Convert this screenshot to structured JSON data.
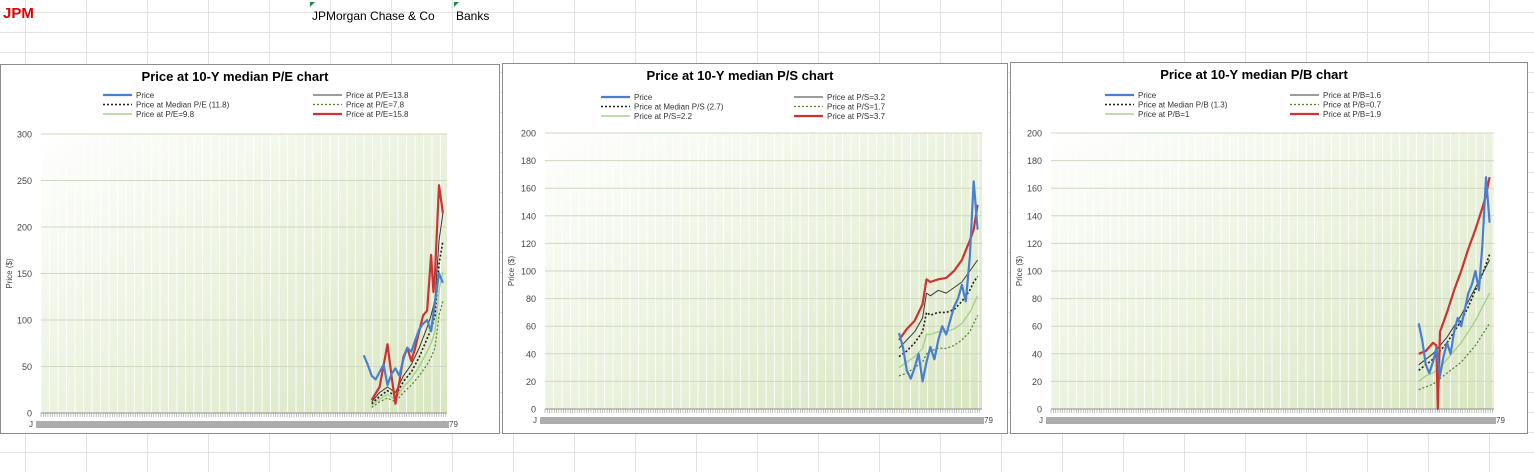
{
  "sheet": {
    "ticker": "JPM",
    "company": "JPMorgan Chase & Co",
    "sector": "Banks"
  },
  "colors": {
    "price": "#4a7fcf",
    "median": "#1f1f1f",
    "high": "#3a3a3a",
    "low": "#4f7f2f",
    "lowest": "#a8d08d",
    "highest": "#cc3333",
    "plot_bg_a": "#ffffff",
    "plot_bg_b": "#d8e6c0"
  },
  "chart_data": [
    {
      "type": "line",
      "title": "Price at 10-Y median P/E chart",
      "ylabel": "Price ($)",
      "ylim": [
        0,
        300
      ],
      "yticks": [
        0,
        50,
        100,
        150,
        200,
        250,
        300
      ],
      "x_tick_start": "J",
      "x_tick_end": "79",
      "grid": true,
      "legend_position": "top",
      "series": [
        {
          "name": "Price",
          "role": "price",
          "x": [
            0.0,
            0.05,
            0.1,
            0.15,
            0.2,
            0.25,
            0.3,
            0.35,
            0.4,
            0.45,
            0.5,
            0.55,
            0.6,
            0.65,
            0.7,
            0.75,
            0.8,
            0.85,
            0.9,
            0.95,
            1.0
          ],
          "values": [
            62,
            52,
            40,
            36,
            44,
            52,
            30,
            42,
            48,
            40,
            58,
            70,
            66,
            78,
            90,
            96,
            100,
            88,
            120,
            150,
            140
          ]
        },
        {
          "name": "Price at P/E=13.8",
          "role": "high",
          "x": [
            0.1,
            0.2,
            0.3,
            0.4,
            0.5,
            0.6,
            0.7,
            0.8,
            0.85,
            0.9,
            0.95,
            1.0
          ],
          "values": [
            12,
            22,
            28,
            22,
            40,
            52,
            70,
            92,
            105,
            122,
            185,
            215
          ]
        },
        {
          "name": "Price at Median P/E (11.8)",
          "role": "median",
          "x": [
            0.1,
            0.2,
            0.3,
            0.4,
            0.5,
            0.6,
            0.7,
            0.8,
            0.85,
            0.9,
            0.95,
            1.0
          ],
          "values": [
            10,
            18,
            24,
            18,
            34,
            44,
            60,
            80,
            90,
            105,
            160,
            185
          ]
        },
        {
          "name": "Price at P/E=7.8",
          "role": "low",
          "x": [
            0.1,
            0.2,
            0.3,
            0.4,
            0.5,
            0.6,
            0.7,
            0.8,
            0.85,
            0.9,
            0.95,
            1.0
          ],
          "values": [
            6,
            12,
            16,
            12,
            22,
            30,
            40,
            52,
            60,
            70,
            105,
            120
          ]
        },
        {
          "name": "Price at P/E=9.8",
          "role": "lowest",
          "x": [
            0.1,
            0.2,
            0.3,
            0.4,
            0.5,
            0.6,
            0.7,
            0.8,
            0.85,
            0.9,
            0.95,
            1.0
          ],
          "values": [
            8,
            15,
            20,
            15,
            28,
            37,
            50,
            66,
            75,
            88,
            132,
            152
          ]
        },
        {
          "name": "Price at P/E=15.8",
          "role": "highest",
          "x": [
            0.1,
            0.2,
            0.3,
            0.35,
            0.4,
            0.45,
            0.5,
            0.55,
            0.6,
            0.65,
            0.7,
            0.75,
            0.8,
            0.85,
            0.88,
            0.9,
            0.95,
            1.0
          ],
          "values": [
            14,
            28,
            74,
            40,
            10,
            34,
            60,
            70,
            56,
            70,
            88,
            105,
            110,
            170,
            130,
            150,
            245,
            215
          ]
        }
      ]
    },
    {
      "type": "line",
      "title": "Price at 10-Y median P/S chart",
      "ylabel": "Price ($)",
      "ylim": [
        0,
        200
      ],
      "yticks": [
        0,
        20,
        40,
        60,
        80,
        100,
        120,
        140,
        160,
        180,
        200
      ],
      "x_tick_start": "J",
      "x_tick_end": "79",
      "grid": true,
      "legend_position": "top",
      "series": [
        {
          "name": "Price",
          "role": "price",
          "x": [
            0.0,
            0.05,
            0.1,
            0.15,
            0.2,
            0.25,
            0.3,
            0.35,
            0.4,
            0.45,
            0.5,
            0.55,
            0.6,
            0.65,
            0.7,
            0.75,
            0.8,
            0.85,
            0.9,
            0.95,
            1.0
          ],
          "values": [
            55,
            45,
            28,
            22,
            30,
            40,
            20,
            34,
            45,
            36,
            50,
            60,
            54,
            64,
            74,
            80,
            90,
            78,
            110,
            165,
            130
          ]
        },
        {
          "name": "Price at P/S=3.2",
          "role": "high",
          "x": [
            0.0,
            0.1,
            0.2,
            0.3,
            0.35,
            0.4,
            0.5,
            0.6,
            0.7,
            0.8,
            0.9,
            0.95,
            1.0
          ],
          "values": [
            44,
            50,
            56,
            66,
            84,
            82,
            86,
            84,
            88,
            92,
            100,
            104,
            108
          ]
        },
        {
          "name": "Price at Median P/S (2.7)",
          "role": "median",
          "x": [
            0.0,
            0.1,
            0.2,
            0.3,
            0.35,
            0.4,
            0.5,
            0.6,
            0.7,
            0.8,
            0.9,
            0.95,
            1.0
          ],
          "values": [
            38,
            42,
            48,
            56,
            70,
            68,
            70,
            70,
            72,
            78,
            86,
            92,
            96
          ]
        },
        {
          "name": "Price at P/S=1.7",
          "role": "low",
          "x": [
            0.0,
            0.1,
            0.2,
            0.3,
            0.35,
            0.4,
            0.5,
            0.6,
            0.7,
            0.8,
            0.9,
            0.95,
            1.0
          ],
          "values": [
            24,
            26,
            30,
            34,
            40,
            42,
            44,
            44,
            46,
            50,
            56,
            62,
            68
          ]
        },
        {
          "name": "Price at P/S=2.2",
          "role": "lowest",
          "x": [
            0.0,
            0.1,
            0.2,
            0.3,
            0.35,
            0.4,
            0.5,
            0.6,
            0.7,
            0.8,
            0.9,
            0.95,
            1.0
          ],
          "values": [
            30,
            34,
            38,
            44,
            54,
            54,
            56,
            56,
            58,
            62,
            70,
            76,
            82
          ]
        },
        {
          "name": "Price at P/S=3.7",
          "role": "highest",
          "x": [
            0.0,
            0.1,
            0.2,
            0.3,
            0.35,
            0.4,
            0.5,
            0.6,
            0.7,
            0.8,
            0.9,
            0.95,
            1.0
          ],
          "values": [
            50,
            58,
            64,
            76,
            94,
            92,
            94,
            95,
            100,
            108,
            122,
            130,
            148
          ]
        }
      ]
    },
    {
      "type": "line",
      "title": "Price at 10-Y median P/B chart",
      "ylabel": "Price ($)",
      "ylim": [
        0,
        200
      ],
      "yticks": [
        0,
        20,
        40,
        60,
        80,
        100,
        120,
        140,
        160,
        180,
        200
      ],
      "x_tick_start": "J",
      "x_tick_end": "79",
      "grid": true,
      "legend_position": "top",
      "series": [
        {
          "name": "Price",
          "role": "price",
          "x": [
            0.0,
            0.05,
            0.1,
            0.15,
            0.2,
            0.25,
            0.3,
            0.35,
            0.4,
            0.45,
            0.5,
            0.55,
            0.6,
            0.65,
            0.7,
            0.75,
            0.8,
            0.85,
            0.9,
            0.95,
            1.0
          ],
          "values": [
            62,
            50,
            32,
            26,
            34,
            44,
            24,
            38,
            48,
            40,
            56,
            66,
            60,
            72,
            84,
            90,
            100,
            86,
            120,
            168,
            135
          ]
        },
        {
          "name": "Price at P/B=1.6",
          "role": "high",
          "x": [
            0.0,
            0.1,
            0.2,
            0.3,
            0.4,
            0.5,
            0.6,
            0.7,
            0.8,
            0.9,
            1.0
          ],
          "values": [
            32,
            36,
            40,
            46,
            52,
            60,
            68,
            78,
            88,
            98,
            108
          ]
        },
        {
          "name": "Price at Median P/B (1.3)",
          "role": "median",
          "x": [
            0.0,
            0.1,
            0.2,
            0.3,
            0.4,
            0.5,
            0.6,
            0.7,
            0.8,
            0.9,
            1.0
          ],
          "values": [
            28,
            32,
            36,
            42,
            48,
            56,
            64,
            74,
            86,
            98,
            112
          ]
        },
        {
          "name": "Price at P/B=0.7",
          "role": "low",
          "x": [
            0.0,
            0.1,
            0.2,
            0.3,
            0.4,
            0.5,
            0.6,
            0.7,
            0.8,
            0.9,
            1.0
          ],
          "values": [
            14,
            16,
            18,
            22,
            26,
            30,
            34,
            40,
            46,
            54,
            62
          ]
        },
        {
          "name": "Price at P/B=1",
          "role": "lowest",
          "x": [
            0.0,
            0.1,
            0.2,
            0.3,
            0.4,
            0.5,
            0.6,
            0.7,
            0.8,
            0.9,
            1.0
          ],
          "values": [
            20,
            24,
            26,
            30,
            36,
            42,
            48,
            56,
            64,
            74,
            84
          ]
        },
        {
          "name": "Price at P/B=1.9",
          "role": "highest",
          "x": [
            0.0,
            0.1,
            0.2,
            0.25,
            0.27,
            0.3,
            0.4,
            0.5,
            0.6,
            0.7,
            0.8,
            0.9,
            0.95,
            1.0
          ],
          "values": [
            40,
            42,
            48,
            46,
            0,
            56,
            70,
            86,
            100,
            116,
            130,
            146,
            155,
            168
          ]
        }
      ]
    }
  ]
}
